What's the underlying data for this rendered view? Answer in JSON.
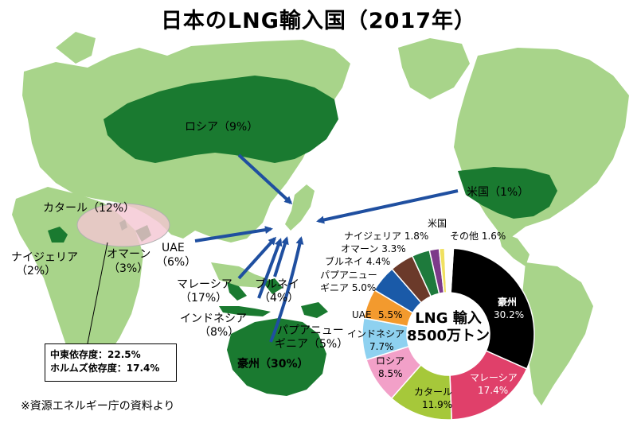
{
  "title": "日本のLNG輸入国（2017年）",
  "map_labels": {
    "russia": "ロシア（9%）",
    "usa": "米国（1%）",
    "qatar": "カタール（12%）",
    "nigeria_name": "ナイジェリア",
    "nigeria_pct": "（2%）",
    "oman_name": "オマーン",
    "oman_pct": "（3%）",
    "uae_name": "UAE",
    "uae_pct": "（6%）",
    "malaysia_name": "マレーシア",
    "malaysia_pct": "（17%）",
    "brunei_name": "ブルネイ",
    "brunei_pct": "（4%）",
    "indonesia_name": "インドネシア",
    "indonesia_pct": "（8%）",
    "png_name": "パプアニュー",
    "png_pct": "ギニア（5%）",
    "australia": "豪州（30%）"
  },
  "callout": {
    "line1": "中東依存度：22.5%",
    "line2": "ホルムズ依存度：17.4%"
  },
  "source": "※資源エネルギー庁の資料より",
  "donut_center": {
    "line1": "LNG 輸入",
    "line2": "8500万トン"
  },
  "chart_data": {
    "type": "pie",
    "title": "",
    "slices": [
      {
        "label": "豪州",
        "value": 30.2,
        "color": "#000000"
      },
      {
        "label": "マレーシア",
        "value": 17.4,
        "color": "#e0406a"
      },
      {
        "label": "カタール",
        "value": 11.9,
        "color": "#a6c83a"
      },
      {
        "label": "ロシア",
        "value": 8.5,
        "color": "#f2a0c8"
      },
      {
        "label": "インドネシア",
        "value": 7.7,
        "color": "#8ed1f0"
      },
      {
        "label": "UAE",
        "value": 5.5,
        "color": "#f39a2e"
      },
      {
        "label": "パプアニューギニア",
        "value": 5.0,
        "color": "#1a5aa8"
      },
      {
        "label": "ブルネイ",
        "value": 4.4,
        "color": "#6b3a2a"
      },
      {
        "label": "オマーン",
        "value": 3.3,
        "color": "#1e7a3c"
      },
      {
        "label": "ナイジェリア",
        "value": 1.8,
        "color": "#7d3a8a"
      },
      {
        "label": "米国",
        "value": 1.0,
        "color": "#f0e060"
      },
      {
        "label": "その他",
        "value": 1.6,
        "color": "#ffffff"
      }
    ],
    "slice_label_text": {
      "aus": "豪州",
      "aus_v": "30.2%",
      "mal": "マレーシア",
      "mal_v": "17.4%",
      "qat": "カタール",
      "qat_v": "11.9%",
      "rus": "ロシア",
      "rus_v": "8.5%",
      "ind": "インドネシア",
      "ind_v": "7.7%",
      "uae": "UAE",
      "uae_v": "5.5%",
      "png1": "パプアニュー",
      "png2": "ギニア 5.0%",
      "bru": "ブルネイ 4.4%",
      "oma": "オマーン 3.3%",
      "nig": "ナイジェリア 1.8%",
      "us": "米国",
      "oth": "その他 1.6%"
    }
  },
  "colors": {
    "ocean": "#ffffff",
    "land_light": "#a8d48a",
    "land_exporter": "#1a7a30",
    "arrow": "#1f4fa0",
    "middle_east_ellipse": "#f4c6d2"
  }
}
